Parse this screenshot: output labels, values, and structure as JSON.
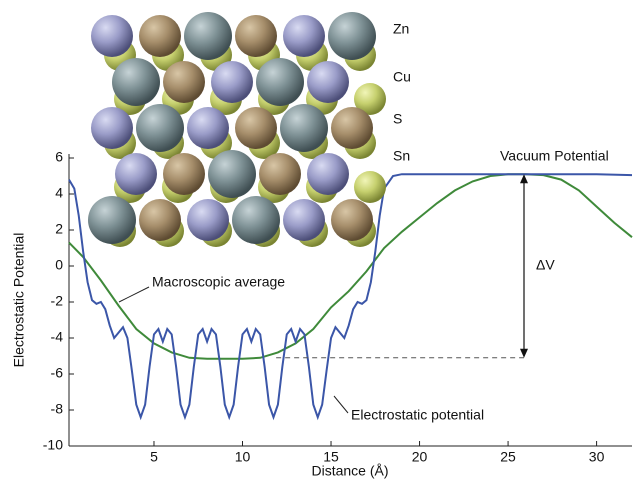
{
  "chart_data": {
    "type": "line",
    "xlabel": "Distance  (Å)",
    "ylabel": "Electrostatic Potential",
    "xlim": [
      0.2,
      32
    ],
    "ylim": [
      -10,
      6
    ],
    "xticks": [
      5,
      10,
      15,
      20,
      25,
      30
    ],
    "yticks": [
      -10,
      -8,
      -6,
      -4,
      -2,
      0,
      2,
      4,
      6
    ],
    "series": [
      {
        "name": "Electrostatic potential",
        "color": "#3b56a8",
        "x": [
          0.2,
          0.5,
          0.75,
          1.0,
          1.25,
          1.5,
          1.75,
          2.0,
          2.25,
          2.5,
          2.75,
          3.0,
          3.25,
          3.5,
          3.75,
          4.0,
          4.25,
          4.5,
          4.75,
          5.0,
          5.25,
          5.5,
          5.75,
          6.0,
          6.25,
          6.5,
          6.75,
          7.0,
          7.25,
          7.5,
          7.75,
          8.0,
          8.25,
          8.5,
          8.75,
          9.0,
          9.25,
          9.5,
          9.75,
          10.0,
          10.25,
          10.5,
          10.75,
          11.0,
          11.25,
          11.5,
          11.75,
          12.0,
          12.25,
          12.5,
          12.75,
          13.0,
          13.25,
          13.5,
          13.75,
          14.0,
          14.25,
          14.5,
          14.75,
          15.0,
          15.25,
          15.5,
          15.75,
          16.0,
          16.25,
          16.5,
          16.75,
          17.0,
          17.25,
          17.5,
          17.75,
          18.0,
          18.5,
          19.0,
          20,
          25,
          30,
          32
        ],
        "values": [
          4.8,
          4.3,
          2.8,
          0.8,
          -0.9,
          -1.9,
          -2.1,
          -2.0,
          -2.4,
          -3.3,
          -4.0,
          -3.7,
          -3.4,
          -4.0,
          -5.8,
          -7.7,
          -8.4,
          -7.7,
          -5.6,
          -3.8,
          -3.5,
          -4.2,
          -3.5,
          -3.8,
          -5.6,
          -7.7,
          -8.4,
          -7.7,
          -5.6,
          -3.8,
          -3.5,
          -4.2,
          -3.5,
          -3.8,
          -5.6,
          -7.7,
          -8.4,
          -7.7,
          -5.6,
          -3.8,
          -3.5,
          -4.2,
          -3.5,
          -3.8,
          -5.6,
          -7.7,
          -8.4,
          -7.7,
          -5.6,
          -3.8,
          -3.5,
          -4.2,
          -3.5,
          -3.8,
          -5.6,
          -7.7,
          -8.4,
          -7.7,
          -5.8,
          -4.0,
          -3.4,
          -3.7,
          -4.0,
          -3.3,
          -2.4,
          -2.0,
          -2.1,
          -1.9,
          -0.9,
          0.8,
          2.8,
          4.3,
          5.0,
          5.1,
          5.1,
          5.1,
          5.1,
          5.05
        ]
      },
      {
        "name": "Macroscopic average",
        "color": "#3f8a3a",
        "x": [
          0.2,
          1,
          2,
          3,
          4,
          5,
          6,
          7,
          8,
          9,
          10,
          11,
          12,
          13,
          14,
          15,
          16,
          17,
          18,
          19,
          20,
          21,
          22,
          23,
          24,
          25,
          26,
          27,
          28,
          29,
          30,
          31,
          32
        ],
        "values": [
          1.3,
          0.5,
          -0.8,
          -2.2,
          -3.5,
          -4.3,
          -4.8,
          -5.1,
          -5.15,
          -5.15,
          -5.15,
          -5.1,
          -4.8,
          -4.3,
          -3.5,
          -2.3,
          -1.4,
          -0.3,
          1.0,
          1.9,
          2.7,
          3.5,
          4.2,
          4.7,
          5.0,
          5.1,
          5.1,
          5.05,
          4.8,
          4.2,
          3.3,
          2.4,
          1.6
        ]
      }
    ],
    "vacuum_label": "Vacuum Potential",
    "delta_v": {
      "label": "ΔV",
      "x": 25.9,
      "y_top": 5.1,
      "y_bottom": -5.1,
      "dash_x_start": 11.9
    },
    "inset_labels": [
      "Zn",
      "Cu",
      "S",
      "Sn"
    ]
  }
}
